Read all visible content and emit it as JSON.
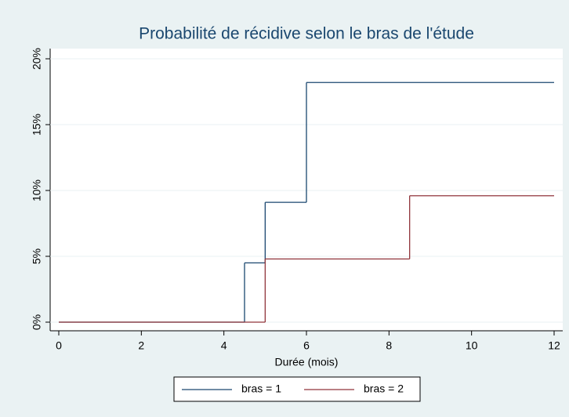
{
  "chart_data": {
    "type": "step",
    "title": "Probabilité de récidive selon le bras de l'étude",
    "x_label": "Durée (mois)",
    "series": [
      {
        "name": "bras = 1",
        "color": "#1a476f",
        "x": [
          0,
          4.5,
          5,
          6,
          12
        ],
        "values": [
          0,
          4.5,
          9.1,
          18.2,
          18.2
        ]
      },
      {
        "name": "bras = 2",
        "color": "#90353b",
        "x": [
          0,
          5,
          8.5,
          12
        ],
        "values": [
          0,
          4.8,
          9.6,
          9.6
        ]
      }
    ],
    "xlim": [
      0,
      12
    ],
    "xticks": [
      0,
      2,
      4,
      6,
      8,
      10,
      12
    ],
    "ylim": [
      0,
      20
    ],
    "yticks": [
      {
        "value": 0,
        "label": "0%"
      },
      {
        "value": 5,
        "label": "5%"
      },
      {
        "value": 10,
        "label": "10%"
      },
      {
        "value": 15,
        "label": "15%"
      },
      {
        "value": 20,
        "label": "20%"
      }
    ],
    "grid": true,
    "legend": "bottom"
  }
}
